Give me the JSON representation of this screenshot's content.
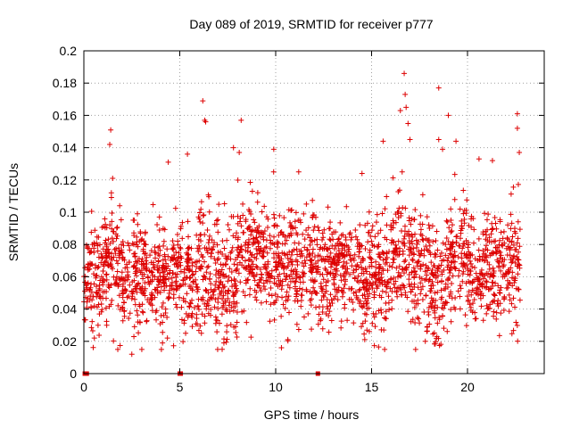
{
  "chart_data": {
    "type": "scatter",
    "title": "Day 089 of 2019, SRMTID for receiver p777",
    "xlabel": "GPS time / hours",
    "ylabel": "SRMTID / TECUs",
    "xlim": [
      0,
      24
    ],
    "ylim": [
      0,
      0.2
    ],
    "x_ticks": [
      0,
      5,
      10,
      15,
      20
    ],
    "x_tick_labels": [
      "0",
      "5",
      "10",
      "15",
      "20"
    ],
    "y_ticks": [
      0,
      0.02,
      0.04,
      0.06,
      0.08,
      0.1,
      0.12,
      0.14,
      0.16,
      0.18,
      0.2
    ],
    "y_tick_labels": [
      "0",
      "0.02",
      "0.04",
      "0.06",
      "0.08",
      "0.1",
      "0.12",
      "0.14",
      "0.16",
      "0.18",
      "0.2"
    ],
    "grid": true,
    "series_color": "#dd0000",
    "marker": "+",
    "zero_points_x": [
      0.05,
      0.15,
      5.0,
      5.05,
      12.2
    ],
    "segments": [
      {
        "x_range": [
          0.0,
          1.0
        ],
        "mean": 0.058,
        "spread": 0.015
      },
      {
        "x_range": [
          1.0,
          2.0
        ],
        "mean": 0.072,
        "spread": 0.017
      },
      {
        "x_range": [
          2.0,
          3.0
        ],
        "mean": 0.06,
        "spread": 0.017
      },
      {
        "x_range": [
          3.0,
          4.0
        ],
        "mean": 0.062,
        "spread": 0.016
      },
      {
        "x_range": [
          4.0,
          5.0
        ],
        "mean": 0.06,
        "spread": 0.016
      },
      {
        "x_range": [
          5.0,
          6.0
        ],
        "mean": 0.06,
        "spread": 0.016
      },
      {
        "x_range": [
          6.0,
          7.0
        ],
        "mean": 0.064,
        "spread": 0.018
      },
      {
        "x_range": [
          7.0,
          8.0
        ],
        "mean": 0.055,
        "spread": 0.018
      },
      {
        "x_range": [
          8.0,
          9.0
        ],
        "mean": 0.075,
        "spread": 0.018
      },
      {
        "x_range": [
          9.0,
          10.0
        ],
        "mean": 0.07,
        "spread": 0.017
      },
      {
        "x_range": [
          10.0,
          11.0
        ],
        "mean": 0.068,
        "spread": 0.017
      },
      {
        "x_range": [
          11.0,
          12.0
        ],
        "mean": 0.066,
        "spread": 0.017
      },
      {
        "x_range": [
          12.0,
          13.0
        ],
        "mean": 0.062,
        "spread": 0.016
      },
      {
        "x_range": [
          13.0,
          14.0
        ],
        "mean": 0.068,
        "spread": 0.016
      },
      {
        "x_range": [
          14.0,
          15.0
        ],
        "mean": 0.062,
        "spread": 0.016
      },
      {
        "x_range": [
          15.0,
          16.0
        ],
        "mean": 0.06,
        "spread": 0.017
      },
      {
        "x_range": [
          16.0,
          17.0
        ],
        "mean": 0.075,
        "spread": 0.02
      },
      {
        "x_range": [
          17.0,
          18.0
        ],
        "mean": 0.068,
        "spread": 0.018
      },
      {
        "x_range": [
          18.0,
          19.0
        ],
        "mean": 0.055,
        "spread": 0.018
      },
      {
        "x_range": [
          19.0,
          20.0
        ],
        "mean": 0.072,
        "spread": 0.018
      },
      {
        "x_range": [
          20.0,
          21.0
        ],
        "mean": 0.064,
        "spread": 0.016
      },
      {
        "x_range": [
          21.0,
          22.0
        ],
        "mean": 0.066,
        "spread": 0.016
      },
      {
        "x_range": [
          22.0,
          22.75
        ],
        "mean": 0.066,
        "spread": 0.018
      }
    ],
    "outliers": [
      {
        "x": 1.4,
        "y": 0.151
      },
      {
        "x": 1.35,
        "y": 0.142
      },
      {
        "x": 1.5,
        "y": 0.121
      },
      {
        "x": 2.5,
        "y": 0.012
      },
      {
        "x": 4.4,
        "y": 0.131
      },
      {
        "x": 5.4,
        "y": 0.136
      },
      {
        "x": 6.2,
        "y": 0.169
      },
      {
        "x": 6.3,
        "y": 0.157
      },
      {
        "x": 6.35,
        "y": 0.156
      },
      {
        "x": 8.2,
        "y": 0.157
      },
      {
        "x": 8.1,
        "y": 0.137
      },
      {
        "x": 7.8,
        "y": 0.14
      },
      {
        "x": 9.9,
        "y": 0.139
      },
      {
        "x": 10.3,
        "y": 0.016
      },
      {
        "x": 11.2,
        "y": 0.125
      },
      {
        "x": 14.5,
        "y": 0.124
      },
      {
        "x": 15.6,
        "y": 0.144
      },
      {
        "x": 16.7,
        "y": 0.186
      },
      {
        "x": 16.75,
        "y": 0.173
      },
      {
        "x": 16.5,
        "y": 0.163
      },
      {
        "x": 16.8,
        "y": 0.165
      },
      {
        "x": 16.9,
        "y": 0.155
      },
      {
        "x": 17.0,
        "y": 0.145
      },
      {
        "x": 18.5,
        "y": 0.177
      },
      {
        "x": 18.5,
        "y": 0.145
      },
      {
        "x": 18.7,
        "y": 0.139
      },
      {
        "x": 19.0,
        "y": 0.16
      },
      {
        "x": 19.4,
        "y": 0.144
      },
      {
        "x": 20.6,
        "y": 0.133
      },
      {
        "x": 21.3,
        "y": 0.132
      },
      {
        "x": 22.6,
        "y": 0.161
      },
      {
        "x": 22.6,
        "y": 0.152
      },
      {
        "x": 22.7,
        "y": 0.137
      },
      {
        "x": 17.8,
        "y": 0.02
      },
      {
        "x": 7.3,
        "y": 0.019
      },
      {
        "x": 4.1,
        "y": 0.019
      }
    ]
  }
}
